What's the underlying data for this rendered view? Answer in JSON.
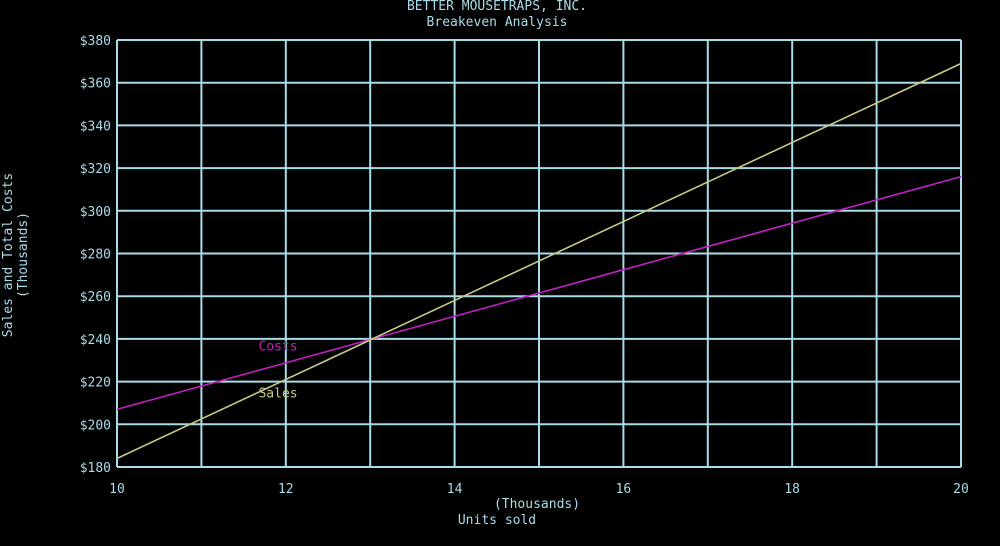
{
  "chart_data": {
    "type": "line",
    "title": "BETTER MOUSETRAPS, INC.",
    "subtitle": "Breakeven Analysis",
    "xlabel_line1": "(Thousands)",
    "xlabel_line2": "Units sold",
    "ylabel_line1": "Sales and Total Costs",
    "ylabel_line2": "(Thousands)",
    "xlim": [
      10,
      20
    ],
    "ylim": [
      180,
      380
    ],
    "grid": true,
    "x_grid": [
      10,
      11,
      12,
      13,
      14,
      15,
      16,
      17,
      18,
      19,
      20
    ],
    "y_grid": [
      180,
      200,
      220,
      240,
      260,
      280,
      300,
      320,
      340,
      360,
      380
    ],
    "x_ticks": [
      {
        "value": 10,
        "label": "10"
      },
      {
        "value": 12,
        "label": "12"
      },
      {
        "value": 14,
        "label": "14"
      },
      {
        "value": 16,
        "label": "16"
      },
      {
        "value": 18,
        "label": "18"
      },
      {
        "value": 20,
        "label": "20"
      }
    ],
    "y_ticks": [
      {
        "value": 180,
        "label": "$180"
      },
      {
        "value": 200,
        "label": "$200"
      },
      {
        "value": 220,
        "label": "$220"
      },
      {
        "value": 240,
        "label": "$240"
      },
      {
        "value": 260,
        "label": "$260"
      },
      {
        "value": 280,
        "label": "$280"
      },
      {
        "value": 300,
        "label": "$300"
      },
      {
        "value": 320,
        "label": "$320"
      },
      {
        "value": 340,
        "label": "$340"
      },
      {
        "value": 360,
        "label": "$360"
      },
      {
        "value": 380,
        "label": "$380"
      }
    ],
    "series": [
      {
        "name": "Costs",
        "color": "#c020c0",
        "x": [
          10,
          20
        ],
        "y": [
          207,
          316
        ],
        "label_at": [
          11.7,
          237
        ]
      },
      {
        "name": "Sales",
        "color": "#c8c884",
        "x": [
          10,
          20
        ],
        "y": [
          184,
          369
        ],
        "label_at": [
          11.7,
          215
        ]
      }
    ],
    "colors": {
      "background": "#000000",
      "grid": "#a8dce8",
      "text": "#a8dce8"
    }
  }
}
